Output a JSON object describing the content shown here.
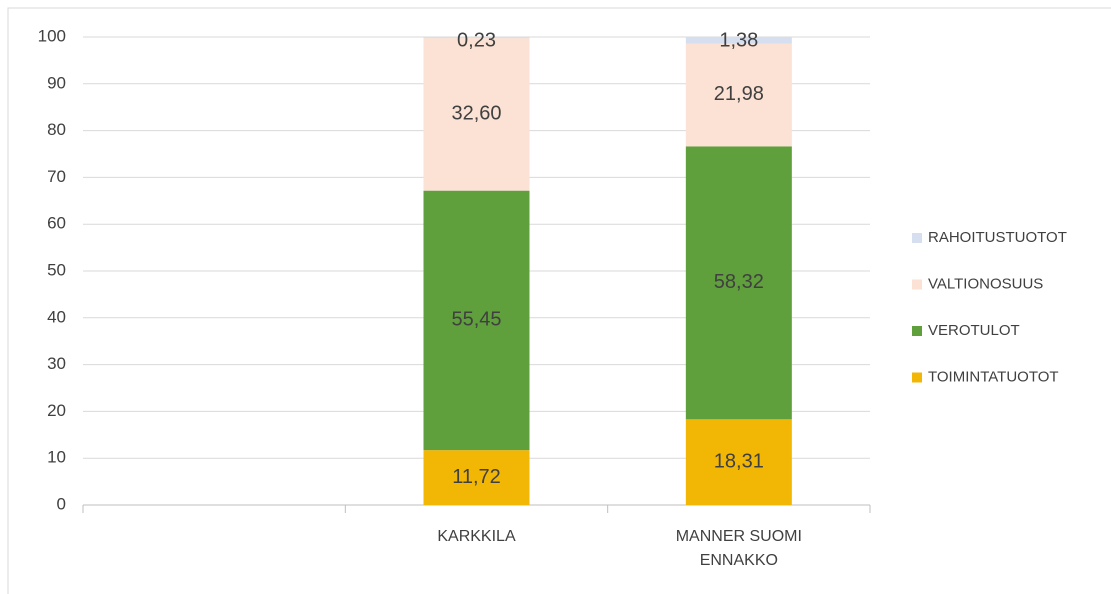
{
  "chart_data": {
    "type": "stacked_bar",
    "categories": [
      null,
      "KARKKILA",
      "MANNER SUOMI ENNAKKO"
    ],
    "series": [
      {
        "name": "TOIMINTATUOTOT",
        "color": "#f2b705",
        "values": [
          null,
          11.72,
          18.31
        ],
        "value_labels": [
          null,
          "11,72",
          "18,31"
        ]
      },
      {
        "name": "VEROTULOT",
        "color": "#5f9f3c",
        "values": [
          null,
          55.45,
          58.32
        ],
        "value_labels": [
          null,
          "55,45",
          "58,32"
        ]
      },
      {
        "name": "VALTIONOSUUS",
        "color": "#fbe2d4",
        "values": [
          null,
          32.6,
          21.98
        ],
        "value_labels": [
          null,
          "32,60",
          "21,98"
        ]
      },
      {
        "name": "RAHOITUSTUOTOT",
        "color": "#d5dff0",
        "values": [
          null,
          0.23,
          1.38
        ],
        "value_labels": [
          null,
          "0,23",
          "1,38"
        ]
      }
    ],
    "ylim": [
      0,
      100
    ],
    "yticks": [
      0,
      10,
      20,
      30,
      40,
      50,
      60,
      70,
      80,
      90,
      100
    ],
    "grid": true,
    "legend": "right"
  }
}
